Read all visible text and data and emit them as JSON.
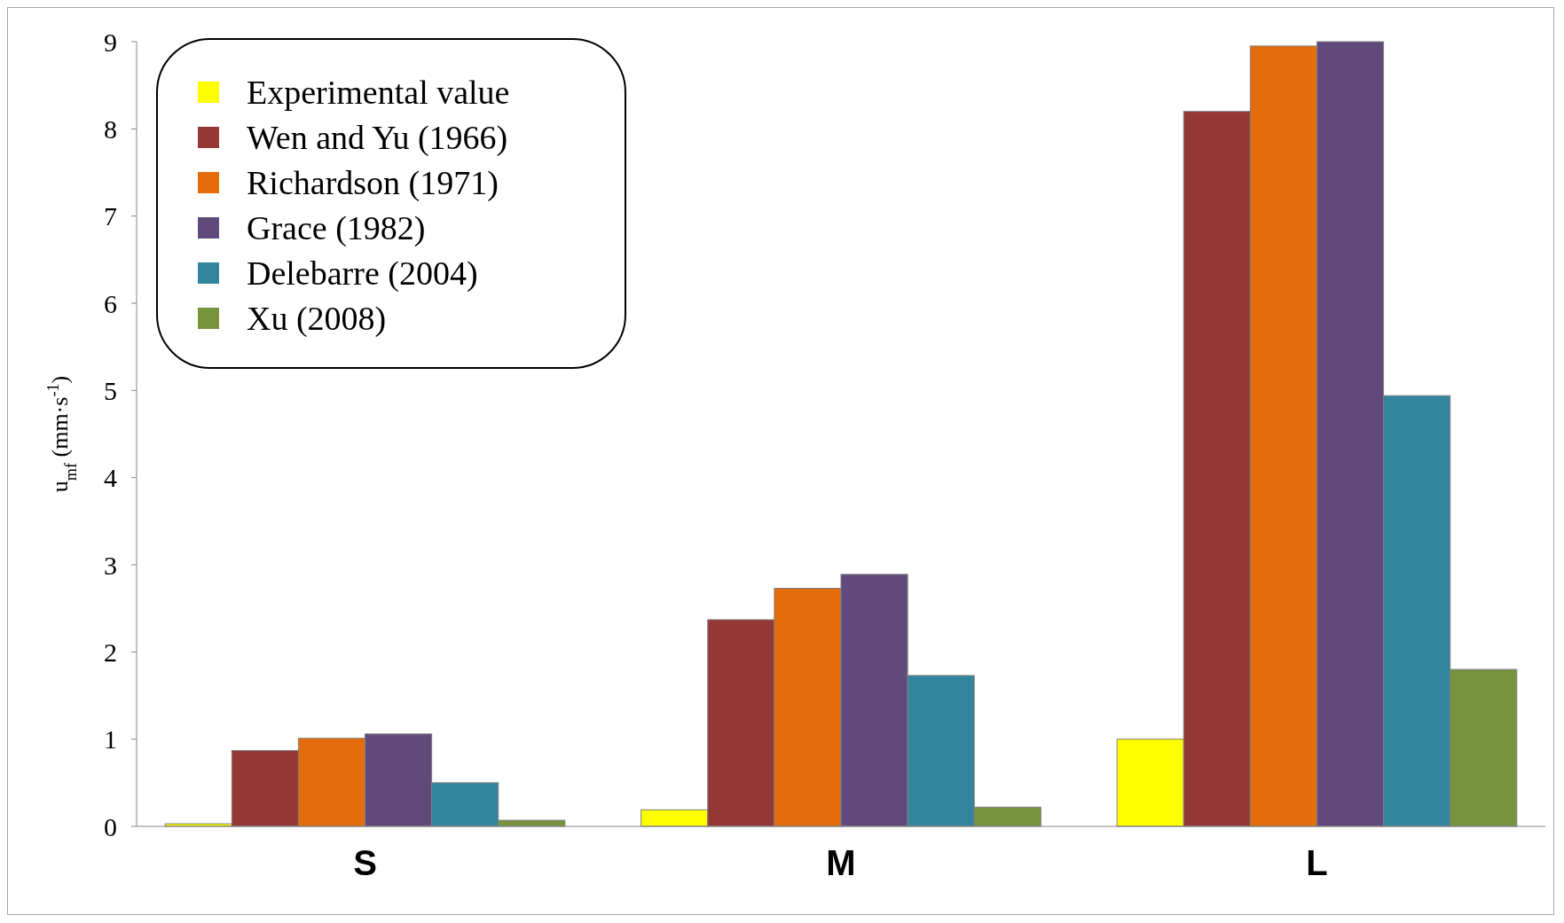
{
  "chart_data": {
    "type": "bar",
    "ylabel": "u$_{mf}$ (mm·s$^{-1}$)",
    "categories": [
      "S",
      "M",
      "L"
    ],
    "ylim": [
      0,
      9
    ],
    "yticks": [
      0,
      1,
      2,
      3,
      4,
      5,
      6,
      7,
      8,
      9
    ],
    "grid": false,
    "legend": "top left",
    "series": [
      {
        "name": "Experimental value",
        "color": "#ffff00",
        "values": [
          0.03,
          0.19,
          1.0
        ]
      },
      {
        "name": "Wen and Yu (1966)",
        "color": "#953735",
        "values": [
          0.87,
          2.37,
          8.2
        ]
      },
      {
        "name": "Richardson (1971)",
        "color": "#e46c0a",
        "values": [
          1.01,
          2.73,
          8.95
        ]
      },
      {
        "name": "Grace (1982)",
        "color": "#604a7b",
        "values": [
          1.06,
          2.89,
          9.0
        ]
      },
      {
        "name": "Delebarre (2004)",
        "color": "#31859c",
        "values": [
          0.5,
          1.73,
          4.94
        ]
      },
      {
        "name": "Xu (2008)",
        "color": "#77933c",
        "values": [
          0.07,
          0.22,
          1.8
        ]
      }
    ]
  }
}
